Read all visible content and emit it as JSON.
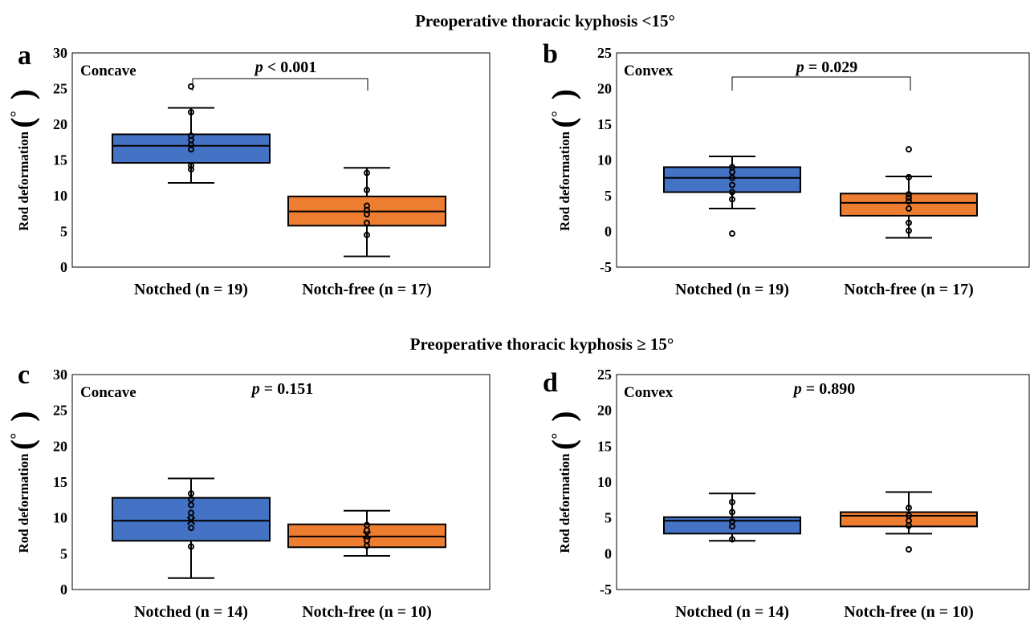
{
  "section_titles": [
    "Preoperative thoracic kyphosis <15°",
    "Preoperative thoracic kyphosis ≥ 15°"
  ],
  "colors": {
    "notched": "#4472C4",
    "notch_free": "#ED7D31",
    "stroke": "#000000"
  },
  "chart_data": [
    {
      "type": "box",
      "panel": "a",
      "side": "Concave",
      "pvalue": {
        "p": "p",
        "text": " < 0.001",
        "bracket": true
      },
      "ylabel": "Rod deformation",
      "yunit": "°",
      "ylim": [
        0,
        30
      ],
      "yticks": [
        0,
        5,
        10,
        15,
        20,
        25,
        30
      ],
      "categories": [
        "Notched (n = 19)",
        "Notch-free (n = 17)"
      ],
      "series": [
        {
          "whisker_low": 11.8,
          "q1": 14.6,
          "median": 17.0,
          "q3": 18.6,
          "whisker_high": 22.3,
          "mean": null,
          "points": [
            25.3,
            21.7,
            18.4,
            17.8,
            17.1,
            16.5,
            14.2,
            13.7
          ]
        },
        {
          "whisker_low": 1.5,
          "q1": 5.8,
          "median": 7.8,
          "q3": 9.9,
          "whisker_high": 13.9,
          "mean": null,
          "points": [
            13.2,
            10.8,
            8.6,
            8.0,
            7.4,
            6.2,
            4.5
          ]
        }
      ]
    },
    {
      "type": "box",
      "panel": "b",
      "side": "Convex",
      "pvalue": {
        "p": "p",
        "text": " = 0.029",
        "bracket": true
      },
      "ylabel": "Rod deformation",
      "yunit": "°",
      "ylim": [
        -5,
        25
      ],
      "yticks": [
        -5,
        0,
        5,
        10,
        15,
        20,
        25
      ],
      "categories": [
        "Notched (n = 19)",
        "Notch-free (n = 17)"
      ],
      "series": [
        {
          "whisker_low": 3.2,
          "q1": 5.5,
          "median": 7.5,
          "q3": 9.0,
          "whisker_high": 10.5,
          "mean": null,
          "points": [
            9.0,
            8.3,
            7.5,
            6.5,
            5.5,
            4.5,
            -0.3
          ]
        },
        {
          "whisker_low": -0.9,
          "q1": 2.2,
          "median": 4.0,
          "q3": 5.3,
          "whisker_high": 7.7,
          "mean": null,
          "points": [
            11.5,
            7.6,
            5.2,
            4.7,
            4.2,
            3.2,
            1.2,
            0.1
          ]
        }
      ]
    },
    {
      "type": "box",
      "panel": "c",
      "side": "Concave",
      "pvalue": {
        "p": "p",
        "text": " = 0.151",
        "bracket": false
      },
      "ylabel": "Rod deformation",
      "yunit": "°",
      "ylim": [
        0,
        30
      ],
      "yticks": [
        0,
        5,
        10,
        15,
        20,
        25,
        30
      ],
      "categories": [
        "Notched (n = 14)",
        "Notch-free (n = 10)"
      ],
      "series": [
        {
          "whisker_low": 1.6,
          "q1": 6.8,
          "median": 9.6,
          "q3": 12.8,
          "whisker_high": 15.5,
          "mean": 9.6,
          "points": [
            13.4,
            12.6,
            11.8,
            10.7,
            10.0,
            8.6,
            6.0
          ]
        },
        {
          "whisker_low": 4.7,
          "q1": 5.9,
          "median": 7.4,
          "q3": 9.1,
          "whisker_high": 11.0,
          "mean": 7.6,
          "points": [
            9.0,
            8.3,
            6.8,
            6.1
          ]
        }
      ]
    },
    {
      "type": "box",
      "panel": "d",
      "side": "Convex",
      "pvalue": {
        "p": "p",
        "text": " = 0.890",
        "bracket": false
      },
      "ylabel": "Rod deformation",
      "yunit": "°",
      "ylim": [
        -5,
        25
      ],
      "yticks": [
        -5,
        0,
        5,
        10,
        15,
        20,
        25
      ],
      "categories": [
        "Notched (n = 14)",
        "Notch-free (n = 10)"
      ],
      "series": [
        {
          "whisker_low": 1.8,
          "q1": 2.8,
          "median": 4.6,
          "q3": 5.1,
          "whisker_high": 8.4,
          "mean": null,
          "points": [
            7.2,
            5.8,
            4.5,
            3.8,
            2.0
          ]
        },
        {
          "whisker_low": 2.8,
          "q1": 3.8,
          "median": 5.3,
          "q3": 5.8,
          "whisker_high": 8.6,
          "mean": null,
          "points": [
            6.4,
            5.3,
            4.6,
            3.9,
            0.6
          ]
        }
      ]
    }
  ]
}
